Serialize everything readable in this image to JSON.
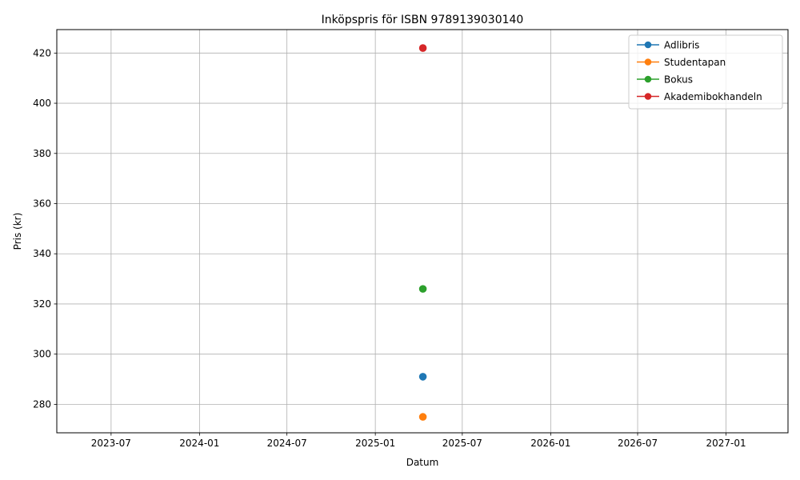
{
  "chart_data": {
    "type": "line",
    "title": "Inköpspris för ISBN 9789139030140",
    "xlabel": "Datum",
    "ylabel": "Pris (kr)",
    "x_ticks": [
      "2023-07",
      "2024-01",
      "2024-07",
      "2025-01",
      "2025-07",
      "2026-01",
      "2026-07",
      "2027-01"
    ],
    "y_ticks": [
      280,
      300,
      320,
      340,
      360,
      380,
      400,
      420
    ],
    "xlim": [
      "2023-03-10",
      "2027-05-10"
    ],
    "ylim": [
      268.65,
      429.35
    ],
    "grid": true,
    "legend_position": "upper right",
    "series": [
      {
        "name": "Adlibris",
        "color": "#1f77b4",
        "points": [
          {
            "x": "2025-04-10",
            "y": 291
          }
        ]
      },
      {
        "name": "Studentapan",
        "color": "#ff7f0e",
        "points": [
          {
            "x": "2025-04-10",
            "y": 275
          }
        ]
      },
      {
        "name": "Bokus",
        "color": "#2ca02c",
        "points": [
          {
            "x": "2025-04-10",
            "y": 326
          }
        ]
      },
      {
        "name": "Akademibokhandeln",
        "color": "#d62728",
        "points": [
          {
            "x": "2025-04-10",
            "y": 422
          }
        ]
      }
    ]
  }
}
